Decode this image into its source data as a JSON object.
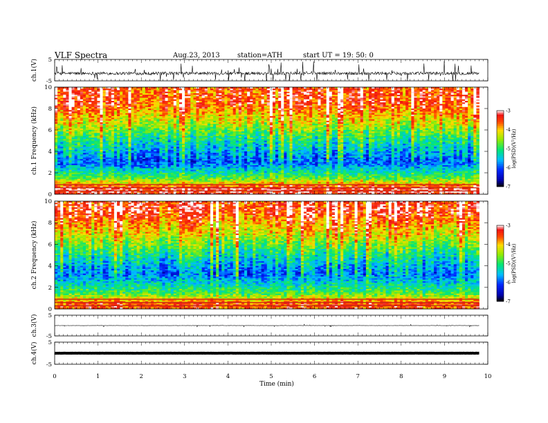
{
  "header": {
    "title": "VLF  Spectra",
    "date": "Aug.23, 2013",
    "station": "station=ATH",
    "start": "start  UT =   19: 50: 0"
  },
  "chart_data": [
    {
      "type": "line",
      "panel": "ch1-waveform",
      "ylabel": "ch.1(V)",
      "ylim": [
        -5,
        5
      ],
      "yticks": [
        "5",
        "-5"
      ],
      "xlim": [
        0,
        10
      ],
      "data_end_min": 9.8,
      "baseline_v": -1.5,
      "color": "#000000"
    },
    {
      "type": "heatmap",
      "panel": "ch1-spectrogram",
      "ylabel": "ch.1 Frequency  (kHz)",
      "ylim": [
        0,
        10
      ],
      "yticks": [
        "0",
        "2",
        "4",
        "6",
        "8",
        "10"
      ],
      "xlim": [
        0,
        10
      ],
      "data_end_min": 9.8,
      "colorbar": {
        "label": "log(PSD)(V²/Hz)",
        "range": [
          -7,
          -3
        ],
        "ticks": [
          "-3",
          "-4",
          "-5",
          "-6",
          "-7"
        ]
      },
      "approx_profile": [
        {
          "freq_khz": 0.5,
          "logpsd": -3.3
        },
        {
          "freq_khz": 1.5,
          "logpsd": -4.8
        },
        {
          "freq_khz": 3.0,
          "logpsd": -6.0
        },
        {
          "freq_khz": 5.0,
          "logpsd": -5.2
        },
        {
          "freq_khz": 6.5,
          "logpsd": -4.4
        },
        {
          "freq_khz": 8.5,
          "logpsd": -3.5
        }
      ]
    },
    {
      "type": "heatmap",
      "panel": "ch2-spectrogram",
      "ylabel": "ch.2 Frequency  (kHz)",
      "ylim": [
        0,
        10
      ],
      "yticks": [
        "0",
        "2",
        "4",
        "6",
        "8",
        "10"
      ],
      "xlim": [
        0,
        10
      ],
      "data_end_min": 9.8,
      "colorbar": {
        "label": "log(PSD)(V²/Hz)",
        "range": [
          -7,
          -3
        ],
        "ticks": [
          "-3",
          "-4",
          "-5",
          "-6",
          "-7"
        ]
      },
      "approx_profile": [
        {
          "freq_khz": 0.5,
          "logpsd": -3.6
        },
        {
          "freq_khz": 1.5,
          "logpsd": -4.9
        },
        {
          "freq_khz": 3.3,
          "logpsd": -5.9
        },
        {
          "freq_khz": 5.0,
          "logpsd": -5.2
        },
        {
          "freq_khz": 7.0,
          "logpsd": -4.2
        },
        {
          "freq_khz": 9.0,
          "logpsd": -3.4
        }
      ]
    },
    {
      "type": "line",
      "panel": "ch3-waveform",
      "ylabel": "ch.3(V)",
      "ylim": [
        -5,
        5
      ],
      "yticks": [
        "5",
        "-5"
      ],
      "xlim": [
        0,
        10
      ],
      "data_end_min": 9.8,
      "baseline_v": 0,
      "color": "#000000"
    },
    {
      "type": "line",
      "panel": "ch4-waveform",
      "ylabel": "ch.4(V)",
      "ylim": [
        -5,
        5
      ],
      "yticks": [
        "5",
        "-5"
      ],
      "xlim": [
        0,
        10
      ],
      "xlabel": "Time  (min)",
      "xticks": [
        "0",
        "1",
        "2",
        "3",
        "4",
        "5",
        "6",
        "7",
        "8",
        "9",
        "10"
      ],
      "data_end_min": 9.8,
      "baseline_v": 0,
      "color": "#000000"
    }
  ]
}
